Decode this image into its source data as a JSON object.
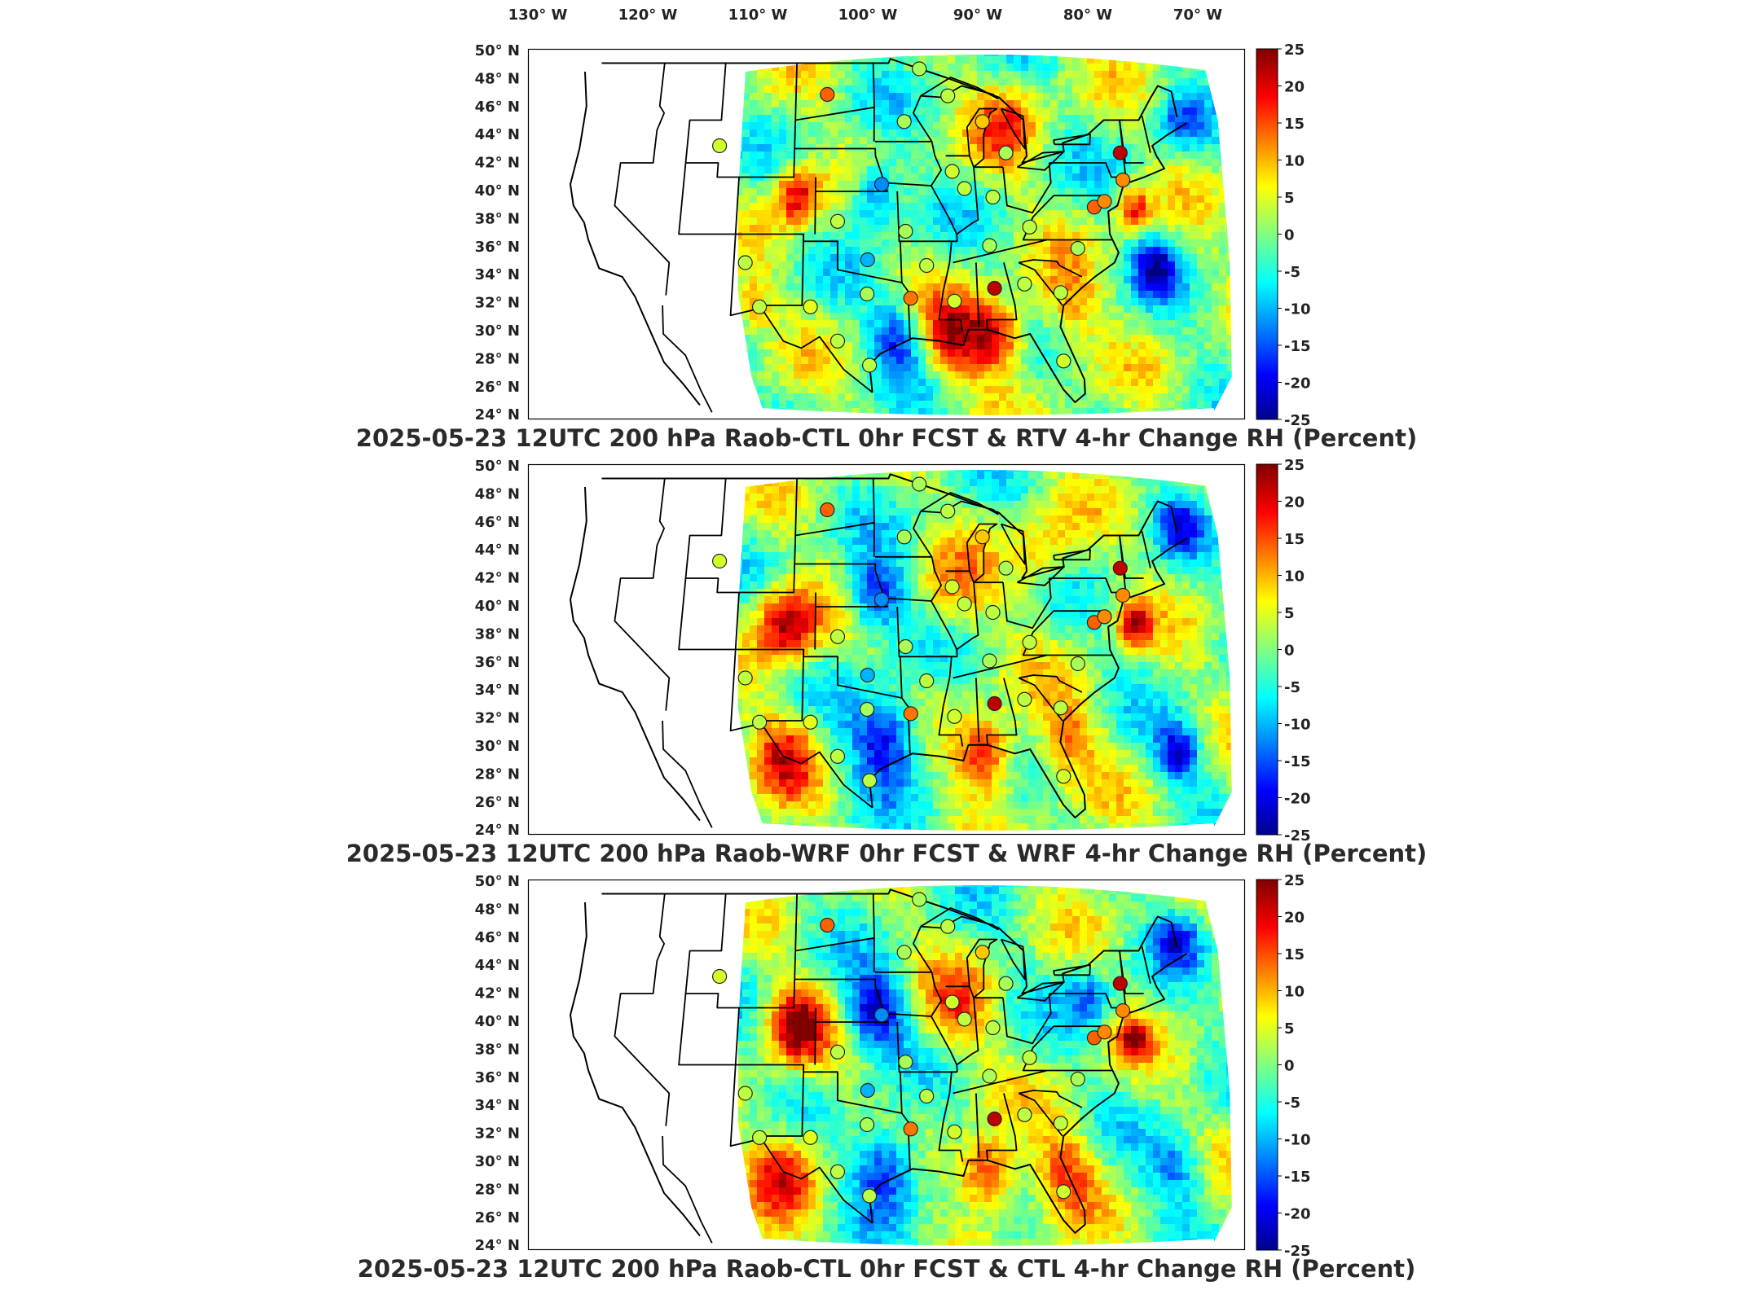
{
  "longitude_labels": [
    "130° W",
    "120° W",
    "110° W",
    "100° W",
    "90° W",
    "80° W",
    "70° W"
  ],
  "latitude_labels": [
    "50° N",
    "48° N",
    "46° N",
    "44° N",
    "42° N",
    "40° N",
    "38° N",
    "36° N",
    "34° N",
    "32° N",
    "30° N",
    "28° N",
    "26° N",
    "24° N"
  ],
  "colorbar": {
    "ticks": [
      "25",
      "20",
      "15",
      "10",
      "5",
      "0",
      "-5",
      "-10",
      "-15",
      "-20",
      "-25"
    ],
    "range": [
      -25,
      25
    ],
    "colormap": "jet"
  },
  "panels": [
    {
      "title": "2025-05-23 12UTC 200 hPa Raob-CTL 0hr FCST & RTV 4-hr Change RH (Percent)",
      "variant": 0
    },
    {
      "title": "2025-05-23 12UTC 200 hPa Raob-WRF 0hr FCST & WRF 4-hr Change RH (Percent)",
      "variant": 1
    },
    {
      "title": "2025-05-23 12UTC 200 hPa Raob-CTL 0hr FCST & CTL 4-hr Change RH (Percent)",
      "variant": 2
    }
  ],
  "stations": [
    {
      "lon": -101.0,
      "lat": 46.8,
      "value": 14
    },
    {
      "lon": -111.0,
      "lat": 43.2,
      "value": 4
    },
    {
      "lon": -93.7,
      "lat": 44.9,
      "value": 2
    },
    {
      "lon": -86.3,
      "lat": 44.9,
      "value": 9
    },
    {
      "lon": -84.4,
      "lat": 42.7,
      "value": 2
    },
    {
      "lon": -73.8,
      "lat": 42.7,
      "value": 22
    },
    {
      "lon": -89.5,
      "lat": 41.4,
      "value": 4
    },
    {
      "lon": -88.5,
      "lat": 40.2,
      "value": 3
    },
    {
      "lon": -86.0,
      "lat": 39.6,
      "value": 3
    },
    {
      "lon": -96.0,
      "lat": 40.5,
      "value": -12
    },
    {
      "lon": -100.0,
      "lat": 37.9,
      "value": 3
    },
    {
      "lon": -94.0,
      "lat": 37.2,
      "value": 2
    },
    {
      "lon": -86.7,
      "lat": 36.2,
      "value": 2
    },
    {
      "lon": -83.0,
      "lat": 37.5,
      "value": 3
    },
    {
      "lon": -79.0,
      "lat": 36.0,
      "value": 2
    },
    {
      "lon": -97.4,
      "lat": 35.2,
      "value": -10
    },
    {
      "lon": -92.3,
      "lat": 34.8,
      "value": 3
    },
    {
      "lon": -108.0,
      "lat": 35.0,
      "value": 3
    },
    {
      "lon": -97.5,
      "lat": 32.8,
      "value": 2
    },
    {
      "lon": -102.3,
      "lat": 31.9,
      "value": 5
    },
    {
      "lon": -106.6,
      "lat": 31.9,
      "value": 3
    },
    {
      "lon": -93.8,
      "lat": 32.5,
      "value": 13
    },
    {
      "lon": -90.1,
      "lat": 32.3,
      "value": 4
    },
    {
      "lon": -86.6,
      "lat": 33.2,
      "value": 22
    },
    {
      "lon": -84.0,
      "lat": 33.5,
      "value": 3
    },
    {
      "lon": -81.0,
      "lat": 32.9,
      "value": 3
    },
    {
      "lon": -100.0,
      "lat": 29.5,
      "value": 3
    },
    {
      "lon": -97.4,
      "lat": 27.8,
      "value": 3
    },
    {
      "lon": -81.5,
      "lat": 28.1,
      "value": 4
    },
    {
      "lon": -74.0,
      "lat": 40.8,
      "value": 12
    },
    {
      "lon": -77.0,
      "lat": 38.9,
      "value": 14
    },
    {
      "lon": -76.0,
      "lat": 39.3,
      "value": 12
    },
    {
      "lon": -92.0,
      "lat": 48.6,
      "value": 2
    },
    {
      "lon": -89.4,
      "lat": 46.7,
      "value": 3
    }
  ]
}
